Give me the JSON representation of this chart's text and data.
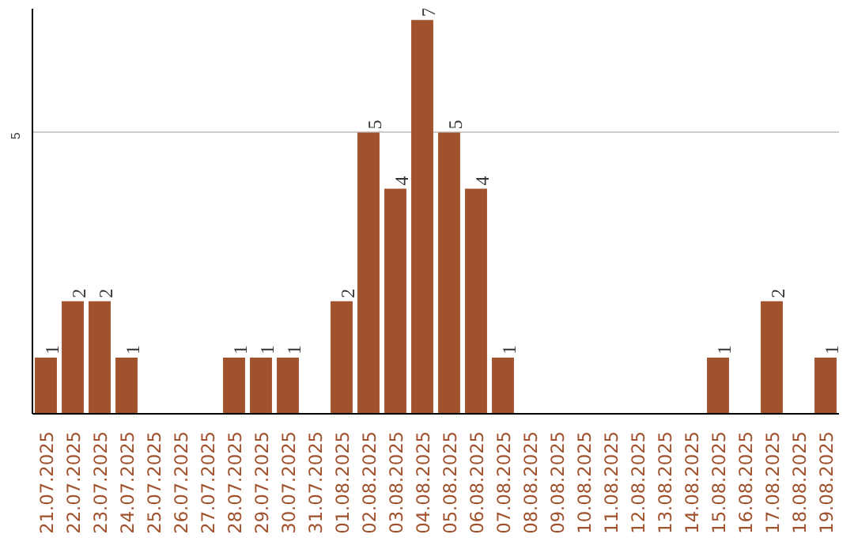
{
  "chart_data": {
    "type": "bar",
    "categories": [
      "21.07.2025",
      "22.07.2025",
      "23.07.2025",
      "24.07.2025",
      "25.07.2025",
      "26.07.2025",
      "27.07.2025",
      "28.07.2025",
      "29.07.2025",
      "30.07.2025",
      "31.07.2025",
      "01.08.2025",
      "02.08.2025",
      "03.08.2025",
      "04.08.2025",
      "05.08.2025",
      "06.08.2025",
      "07.08.2025",
      "08.08.2025",
      "09.08.2025",
      "10.08.2025",
      "11.08.2025",
      "12.08.2025",
      "13.08.2025",
      "14.08.2025",
      "15.08.2025",
      "16.08.2025",
      "17.08.2025",
      "18.08.2025",
      "19.08.2025"
    ],
    "values": [
      1,
      2,
      2,
      1,
      0,
      0,
      0,
      1,
      1,
      1,
      0,
      2,
      5,
      4,
      7,
      5,
      4,
      1,
      0,
      0,
      0,
      0,
      0,
      0,
      0,
      1,
      0,
      2,
      0,
      1
    ],
    "value_labels": [
      "1",
      "2",
      "2",
      "1",
      null,
      null,
      null,
      "1",
      "1",
      "1",
      null,
      "2",
      "5",
      "4",
      "7",
      "5",
      "4",
      "1",
      null,
      null,
      null,
      null,
      null,
      null,
      null,
      "1",
      null,
      "2",
      null,
      "1"
    ],
    "color": "#a0522d",
    "ylim": [
      0,
      7.2
    ],
    "yticks": [
      5
    ],
    "grid": "y"
  }
}
